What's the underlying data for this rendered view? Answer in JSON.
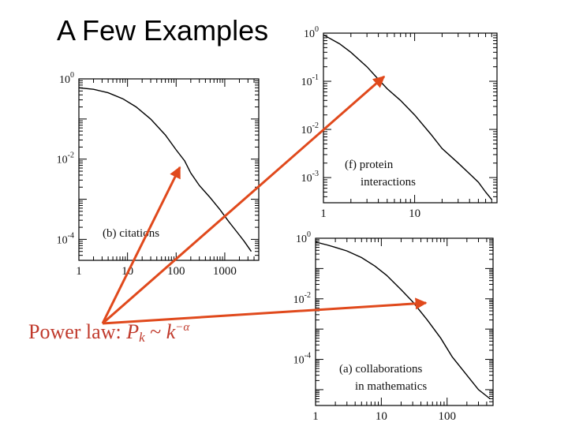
{
  "title": "A Few Examples",
  "caption": {
    "prefix": "Power law:",
    "P": "P",
    "k": "k",
    "sim": "~",
    "k2": "k",
    "exp": "−α"
  },
  "colors": {
    "arrow": "#e0491c",
    "curve": "#000000",
    "caption": "#c0392b"
  },
  "chart_data": [
    {
      "type": "line",
      "label_lines": [
        "(b) citations"
      ],
      "log_x": true,
      "log_y": true,
      "xlim": [
        1,
        5000
      ],
      "ylim": [
        3e-05,
        1
      ],
      "x_tick_labels": [
        "1",
        "10",
        "100",
        "1000"
      ],
      "y_tick_labels": [
        "10^0",
        "10^-2",
        "10^-4"
      ],
      "series": [
        {
          "x": [
            1,
            2,
            4,
            8,
            15,
            30,
            60,
            100,
            150,
            200,
            300,
            500,
            800,
            1200,
            1800,
            2500,
            3500
          ],
          "y": [
            0.6,
            0.55,
            0.45,
            0.32,
            0.2,
            0.1,
            0.04,
            0.017,
            0.009,
            0.0045,
            0.0022,
            0.0011,
            0.00055,
            0.00028,
            0.00015,
            9e-05,
            5e-05
          ]
        }
      ]
    },
    {
      "type": "line",
      "label_lines": [
        "(f) protein",
        "interactions"
      ],
      "log_x": true,
      "log_y": true,
      "xlim": [
        1,
        80
      ],
      "ylim": [
        0.0003,
        1
      ],
      "x_tick_labels": [
        "1",
        "10"
      ],
      "y_tick_labels": [
        "10^0",
        "10^-1",
        "10^-2",
        "10^-3"
      ],
      "series": [
        {
          "x": [
            1,
            1.5,
            2,
            3,
            4,
            5,
            7,
            10,
            15,
            20,
            30,
            40,
            50,
            60,
            70
          ],
          "y": [
            0.92,
            0.6,
            0.4,
            0.2,
            0.11,
            0.07,
            0.04,
            0.02,
            0.008,
            0.004,
            0.002,
            0.0012,
            0.0008,
            0.0005,
            0.00035
          ]
        }
      ]
    },
    {
      "type": "line",
      "label_lines": [
        "(a) collaborations",
        "in mathematics"
      ],
      "log_x": true,
      "log_y": true,
      "xlim": [
        1,
        500
      ],
      "ylim": [
        3e-06,
        1
      ],
      "x_tick_labels": [
        "1",
        "10",
        "100"
      ],
      "y_tick_labels": [
        "10^0",
        "10^-2",
        "10^-4"
      ],
      "series": [
        {
          "x": [
            1,
            1.5,
            2,
            3,
            5,
            8,
            12,
            20,
            30,
            50,
            80,
            120,
            200,
            300,
            450
          ],
          "y": [
            0.75,
            0.6,
            0.5,
            0.38,
            0.23,
            0.12,
            0.06,
            0.02,
            0.008,
            0.002,
            0.0005,
            0.00012,
            3e-05,
            1e-05,
            5e-06
          ]
        }
      ]
    }
  ]
}
